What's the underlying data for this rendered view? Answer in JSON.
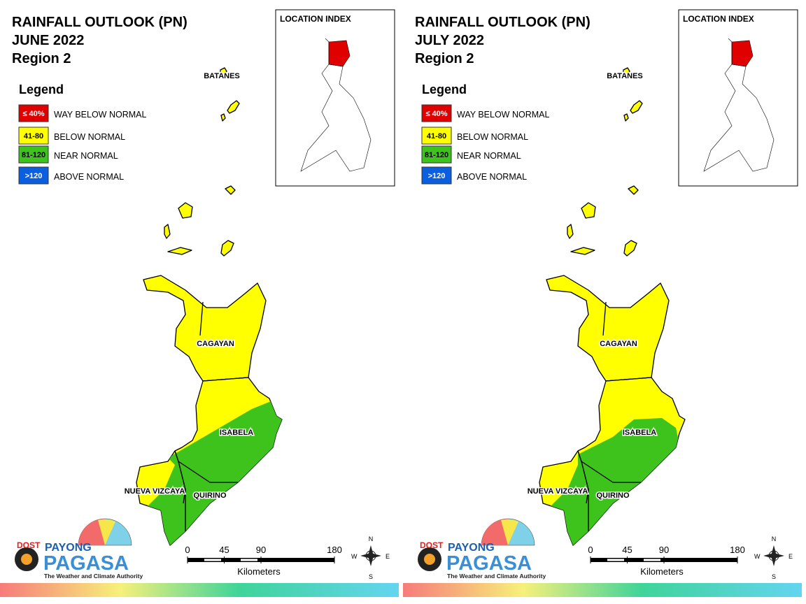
{
  "panels": [
    {
      "title": "RAINFALL OUTLOOK (PN)",
      "period": "JUNE 2022",
      "region": "Region 2",
      "legend": {
        "title": "Legend",
        "items": [
          {
            "range": "≤ 40%",
            "label": "WAY BELOW NORMAL",
            "color": "#e00000"
          },
          {
            "range": "41-80",
            "label": "BELOW NORMAL",
            "color": "#ffff00"
          },
          {
            "range": "81-120",
            "label": "NEAR NORMAL",
            "color": "#3ec21c"
          },
          {
            "range": ">120",
            "label": "ABOVE NORMAL",
            "color": "#0a5fe0"
          }
        ]
      },
      "location_index": "LOCATION INDEX",
      "provinces": [
        "BATANES",
        "CAGAYAN",
        "ISABELA",
        "NUEVA VIZCAYA",
        "QUIRINO"
      ],
      "scale": {
        "ticks": [
          0,
          45,
          90,
          180
        ],
        "unit": "Kilometers"
      },
      "compass": {
        "n": "N",
        "e": "E",
        "s": "S",
        "w": "W"
      },
      "logo": {
        "agency": "DOST",
        "brand_top": "PAYONG",
        "brand": "PAGASA",
        "tagline": "The Weather and Climate Authority"
      }
    },
    {
      "title": "RAINFALL OUTLOOK (PN)",
      "period": "JULY 2022",
      "region": "Region 2",
      "legend": {
        "title": "Legend",
        "items": [
          {
            "range": "≤ 40%",
            "label": "WAY BELOW NORMAL",
            "color": "#e00000"
          },
          {
            "range": "41-80",
            "label": "BELOW NORMAL",
            "color": "#ffff00"
          },
          {
            "range": "81-120",
            "label": "NEAR NORMAL",
            "color": "#3ec21c"
          },
          {
            "range": ">120",
            "label": "ABOVE NORMAL",
            "color": "#0a5fe0"
          }
        ]
      },
      "location_index": "LOCATION INDEX",
      "provinces": [
        "BATANES",
        "CAGAYAN",
        "ISABELA",
        "NUEVA VIZCAYA",
        "QUIRINO"
      ],
      "scale": {
        "ticks": [
          0,
          45,
          90,
          180
        ],
        "unit": "Kilometers"
      },
      "compass": {
        "n": "N",
        "e": "E",
        "s": "S",
        "w": "W"
      },
      "logo": {
        "agency": "DOST",
        "brand_top": "PAYONG",
        "brand": "PAGASA",
        "tagline": "The Weather and Climate Authority"
      }
    }
  ]
}
